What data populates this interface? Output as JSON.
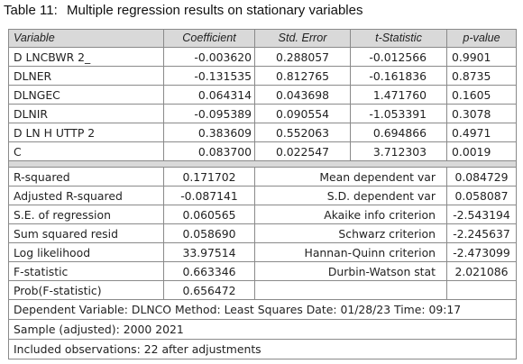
{
  "caption": {
    "number": "Table 11:",
    "title": "Multiple regression results on stationary variables"
  },
  "headers": [
    "Variable",
    "Coefficient",
    "Std. Error",
    "t-Statistic",
    "p-value"
  ],
  "coefficients": [
    {
      "variable": "D LNCBWR 2_",
      "coefficient": "-0.003620",
      "std_error": "0.288057",
      "t_stat": "-0.012566",
      "p_value": "0.9901"
    },
    {
      "variable": "DLNER",
      "coefficient": "-0.131535",
      "std_error": "0.812765",
      "t_stat": "-0.161836",
      "p_value": "0.8735"
    },
    {
      "variable": "DLNGEC",
      "coefficient": "0.064314",
      "std_error": "0.043698",
      "t_stat": "1.471760",
      "p_value": "0.1605"
    },
    {
      "variable": "DLNIR",
      "coefficient": "-0.095389",
      "std_error": "0.090554",
      "t_stat": "-1.053391",
      "p_value": "0.3078"
    },
    {
      "variable": "D LN H UTTP 2",
      "coefficient": "0.383609",
      "std_error": "0.552063",
      "t_stat": "0.694866",
      "p_value": "0.4971"
    },
    {
      "variable": "C",
      "coefficient": "0.083700",
      "std_error": "0.022547",
      "t_stat": "3.712303",
      "p_value": "0.0019"
    }
  ],
  "statistics": [
    {
      "label": "R-squared",
      "value": "0.171702",
      "label2": "Mean dependent var",
      "value2": "0.084729"
    },
    {
      "label": "Adjusted R-squared",
      "value": "-0.087141",
      "label2": "S.D. dependent var",
      "value2": "0.058087"
    },
    {
      "label": "S.E. of regression",
      "value": "0.060565",
      "label2": "Akaike info criterion",
      "value2": "-2.543194"
    },
    {
      "label": "Sum squared resid",
      "value": "0.058690",
      "label2": "Schwarz criterion",
      "value2": "-2.245637"
    },
    {
      "label": "Log likelihood",
      "value": "33.97514",
      "label2": "Hannan-Quinn criterion",
      "value2": "-2.473099"
    },
    {
      "label": "F-statistic",
      "value": "0.663346",
      "label2": "Durbin-Watson stat",
      "value2": "2.021086"
    },
    {
      "label": "Prob(F-statistic)",
      "value": "0.656472",
      "label2": "",
      "value2": ""
    }
  ],
  "notes": [
    "Dependent Variable: DLNCO Method: Least Squares Date: 01/28/23 Time: 09:17",
    "Sample (adjusted): 2000 2021",
    "Included observations: 22 after adjustments"
  ]
}
